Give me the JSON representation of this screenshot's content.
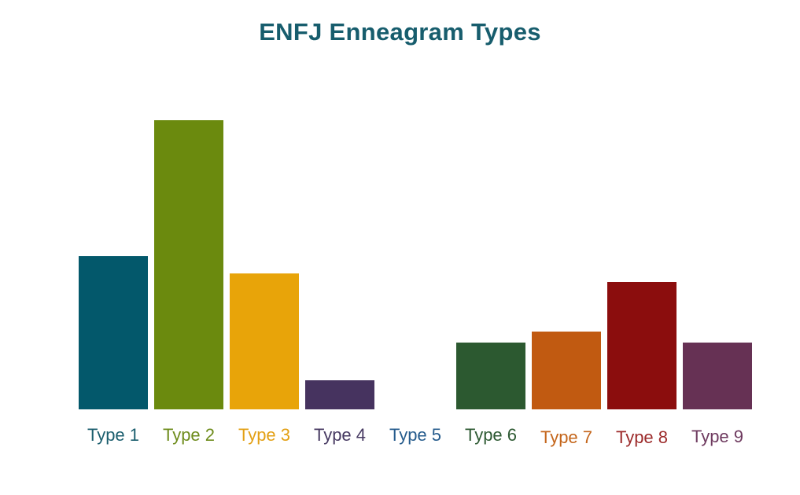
{
  "page": {
    "background": "#ffffff"
  },
  "chart_data": {
    "type": "bar",
    "title": "ENFJ Enneagram Types",
    "title_color": "#175d6d",
    "categories": [
      "Type 1",
      "Type 2",
      "Type 3",
      "Type 4",
      "Type 5",
      "Type 6",
      "Type 7",
      "Type 8",
      "Type 9"
    ],
    "values": [
      53,
      100,
      47,
      10,
      0,
      23,
      27,
      44,
      23
    ],
    "value_units": "relative bar height, tallest bar (Type 2) = 100; no y-axis, gridlines, or value labels shown",
    "bar_colors": [
      "#03586b",
      "#6b8a0e",
      "#e8a409",
      "#46335f",
      null,
      "#2c5930",
      "#c15a11",
      "#8b0d0d",
      "#663154"
    ],
    "label_colors": [
      "#1b5e6e",
      "#6e8c1c",
      "#e3a015",
      "#473a62",
      "#265c8d",
      "#2e5a33",
      "#c4651a",
      "#9c2a2a",
      "#6e3a5f"
    ],
    "xlabel": "",
    "ylabel": "",
    "grid": false,
    "legend": false
  }
}
